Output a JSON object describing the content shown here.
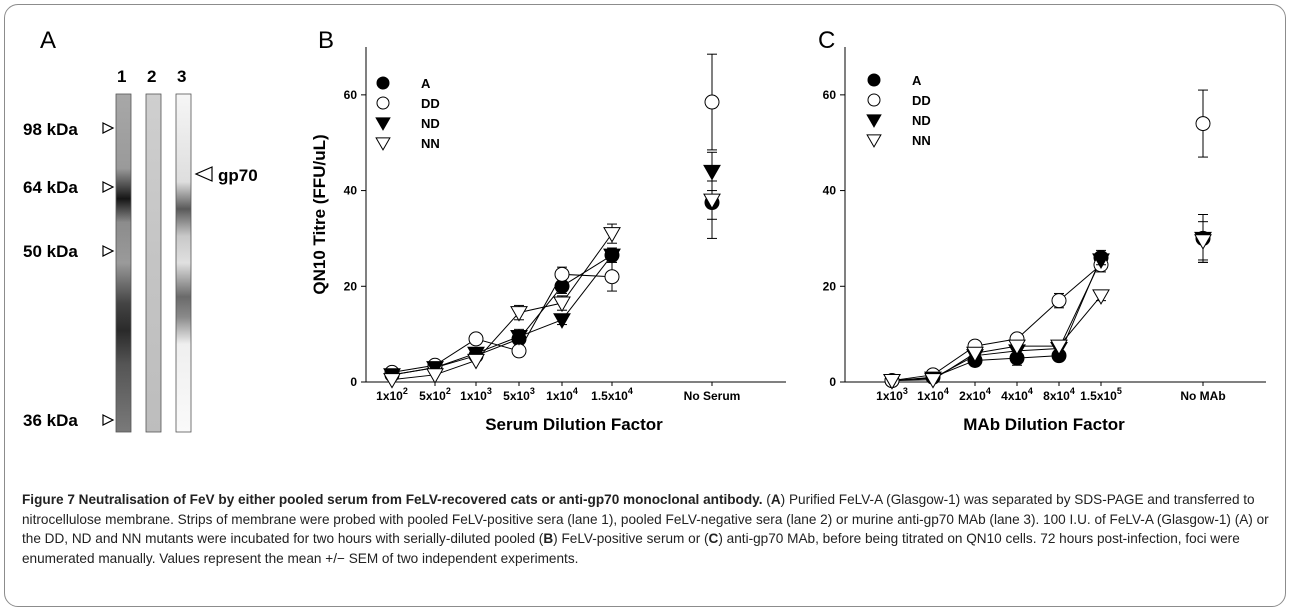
{
  "panel_letters": {
    "a": "A",
    "b": "B",
    "c": "C"
  },
  "blot": {
    "lane_labels": [
      "1",
      "2",
      "3"
    ],
    "markers": [
      "98 kDa",
      "64 kDa",
      "50 kDa",
      "36 kDa"
    ],
    "band_label": "gp70"
  },
  "chart_data": [
    {
      "type": "line",
      "panel": "B",
      "ylabel": "QN10 Titre (FFU/uL)",
      "xlabel": "Serum Dilution Factor",
      "ylim": [
        0,
        70
      ],
      "yticks": [
        0,
        20,
        40,
        60
      ],
      "categories": [
        {
          "base": "1x10",
          "exp": "2"
        },
        {
          "base": "5x10",
          "exp": "2"
        },
        {
          "base": "1x10",
          "exp": "3"
        },
        {
          "base": "5x10",
          "exp": "3"
        },
        {
          "base": "1x10",
          "exp": "4"
        },
        {
          "base": "1.5x10",
          "exp": "4"
        },
        {
          "base": "No Serum",
          "exp": ""
        }
      ],
      "legend_position": "top-left",
      "series": [
        {
          "name": "A",
          "marker": "filled-circle",
          "values": [
            1.5,
            3,
            5.5,
            9,
            20,
            26.5,
            37.5
          ],
          "errors": [
            0.5,
            0.5,
            0.5,
            1.5,
            1.5,
            1.5,
            7.5
          ]
        },
        {
          "name": "DD",
          "marker": "open-circle",
          "values": [
            2,
            3.5,
            9,
            6.5,
            22.5,
            22,
            58.5
          ],
          "errors": [
            0.5,
            0.5,
            0.5,
            1,
            1.5,
            3,
            10
          ]
        },
        {
          "name": "ND",
          "marker": "filled-triangle",
          "values": [
            1.5,
            3,
            6,
            9.5,
            13,
            26.5,
            44
          ],
          "errors": [
            0.5,
            0.5,
            0.5,
            1.5,
            1,
            1,
            4
          ]
        },
        {
          "name": "NN",
          "marker": "open-triangle",
          "values": [
            0.5,
            1.5,
            4.5,
            14.5,
            16.5,
            31,
            38
          ],
          "errors": [
            0.5,
            0.5,
            0.5,
            1.5,
            1.5,
            2,
            4
          ]
        }
      ]
    },
    {
      "type": "line",
      "panel": "C",
      "ylabel": "",
      "xlabel": "MAb Dilution Factor",
      "ylim": [
        0,
        70
      ],
      "yticks": [
        0,
        20,
        40,
        60
      ],
      "categories": [
        {
          "base": "1x10",
          "exp": "3"
        },
        {
          "base": "1x10",
          "exp": "4"
        },
        {
          "base": "2x10",
          "exp": "4"
        },
        {
          "base": "4x10",
          "exp": "4"
        },
        {
          "base": "8x10",
          "exp": "4"
        },
        {
          "base": "1.5x10",
          "exp": "5"
        },
        {
          "base": "No MAb",
          "exp": ""
        }
      ],
      "legend_position": "top-left",
      "series": [
        {
          "name": "A",
          "marker": "filled-circle",
          "values": [
            0.3,
            1,
            4.5,
            5,
            5.5,
            26,
            30
          ],
          "errors": [
            0.3,
            0.5,
            0.5,
            1.5,
            1,
            1.5,
            5
          ]
        },
        {
          "name": "DD",
          "marker": "open-circle",
          "values": [
            0.3,
            1.5,
            7.5,
            9,
            17,
            24.5,
            54
          ],
          "errors": [
            0.3,
            0.5,
            0.5,
            1,
            1.5,
            1.5,
            7
          ]
        },
        {
          "name": "ND",
          "marker": "filled-triangle",
          "values": [
            0.3,
            0.8,
            5.5,
            6.5,
            7,
            25.5,
            30
          ],
          "errors": [
            0.3,
            0.5,
            0.5,
            0.5,
            0.5,
            1,
            5
          ]
        },
        {
          "name": "NN",
          "marker": "open-triangle",
          "values": [
            0.3,
            0.5,
            6,
            7.5,
            7.5,
            18,
            29.5
          ],
          "errors": [
            0.3,
            0.5,
            0.5,
            0.5,
            0.5,
            1,
            4
          ]
        }
      ]
    }
  ],
  "caption": {
    "title": "Figure 7 Neutralisation of FeV by either pooled serum from FeLV-recovered cats or anti-gp70 monoclonal antibody.",
    "parts": [
      {
        "t": " (",
        "b": false
      },
      {
        "t": "A",
        "b": true
      },
      {
        "t": ") Purified FeLV-A (Glasgow-1) was separated by SDS-PAGE and transferred to nitrocellulose membrane. Strips of membrane were probed with pooled FeLV-positive sera (lane 1), pooled FeLV-negative sera (lane 2) or murine anti-gp70 MAb (lane 3). 100 I.U. of FeLV-A (Glasgow-1) (A) or the DD, ND and NN mutants were incubated for two hours with serially-diluted pooled (",
        "b": false
      },
      {
        "t": "B",
        "b": true
      },
      {
        "t": ") FeLV-positive serum or (",
        "b": false
      },
      {
        "t": "C",
        "b": true
      },
      {
        "t": ") anti-gp70 MAb, before being titrated on QN10 cells. 72 hours post-infection, foci were enumerated manually. Values represent the mean +/− SEM of two independent experiments.",
        "b": false
      }
    ]
  }
}
